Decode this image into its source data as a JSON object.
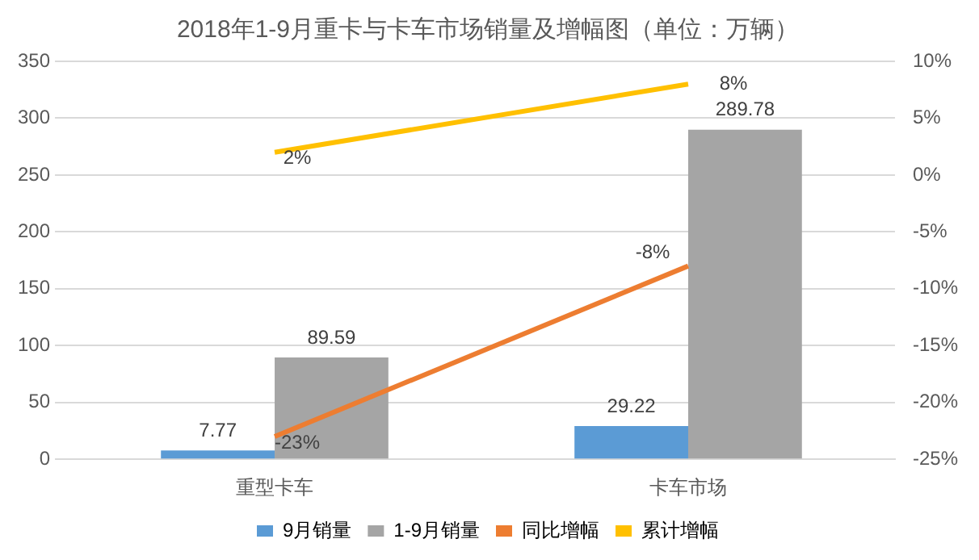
{
  "chart_data": {
    "type": "bar",
    "title": "2018年1-9月重卡与卡车市场销量及增幅图（单位：万辆）",
    "categories": [
      "重型卡车",
      "卡车市场"
    ],
    "series": [
      {
        "name": "9月销量",
        "color": "#5b9bd5",
        "values": [
          7.77,
          29.22
        ],
        "value_labels": [
          "7.77",
          "29.22"
        ]
      },
      {
        "name": "1-9月销量",
        "color": "#a5a5a5",
        "values": [
          89.59,
          289.78
        ],
        "value_labels": [
          "89.59",
          "289.78"
        ]
      },
      {
        "name": "同比增幅",
        "type": "line",
        "axis": "y2",
        "color": "#ed7d31",
        "values": [
          -23,
          -8
        ],
        "value_labels": [
          "-23%",
          "-8%"
        ]
      },
      {
        "name": "累计增幅",
        "type": "line",
        "axis": "y2",
        "color": "#ffc000",
        "values": [
          2,
          8
        ],
        "value_labels": [
          "2%",
          "8%"
        ]
      }
    ],
    "ylim": [
      0,
      350
    ],
    "yticks": [
      0,
      50,
      100,
      150,
      200,
      250,
      300,
      350
    ],
    "y2lim": [
      -25,
      10
    ],
    "y2ticks": [
      {
        "value": -25,
        "label": "-25%"
      },
      {
        "value": -20,
        "label": "-20%"
      },
      {
        "value": -15,
        "label": "-15%"
      },
      {
        "value": -10,
        "label": "-10%"
      },
      {
        "value": -5,
        "label": "-5%"
      },
      {
        "value": 0,
        "label": "0%"
      },
      {
        "value": 5,
        "label": "5%"
      },
      {
        "value": 10,
        "label": "10%"
      }
    ],
    "grid": "y",
    "legend": "bottom",
    "marker": "none",
    "line_style": "solid"
  }
}
